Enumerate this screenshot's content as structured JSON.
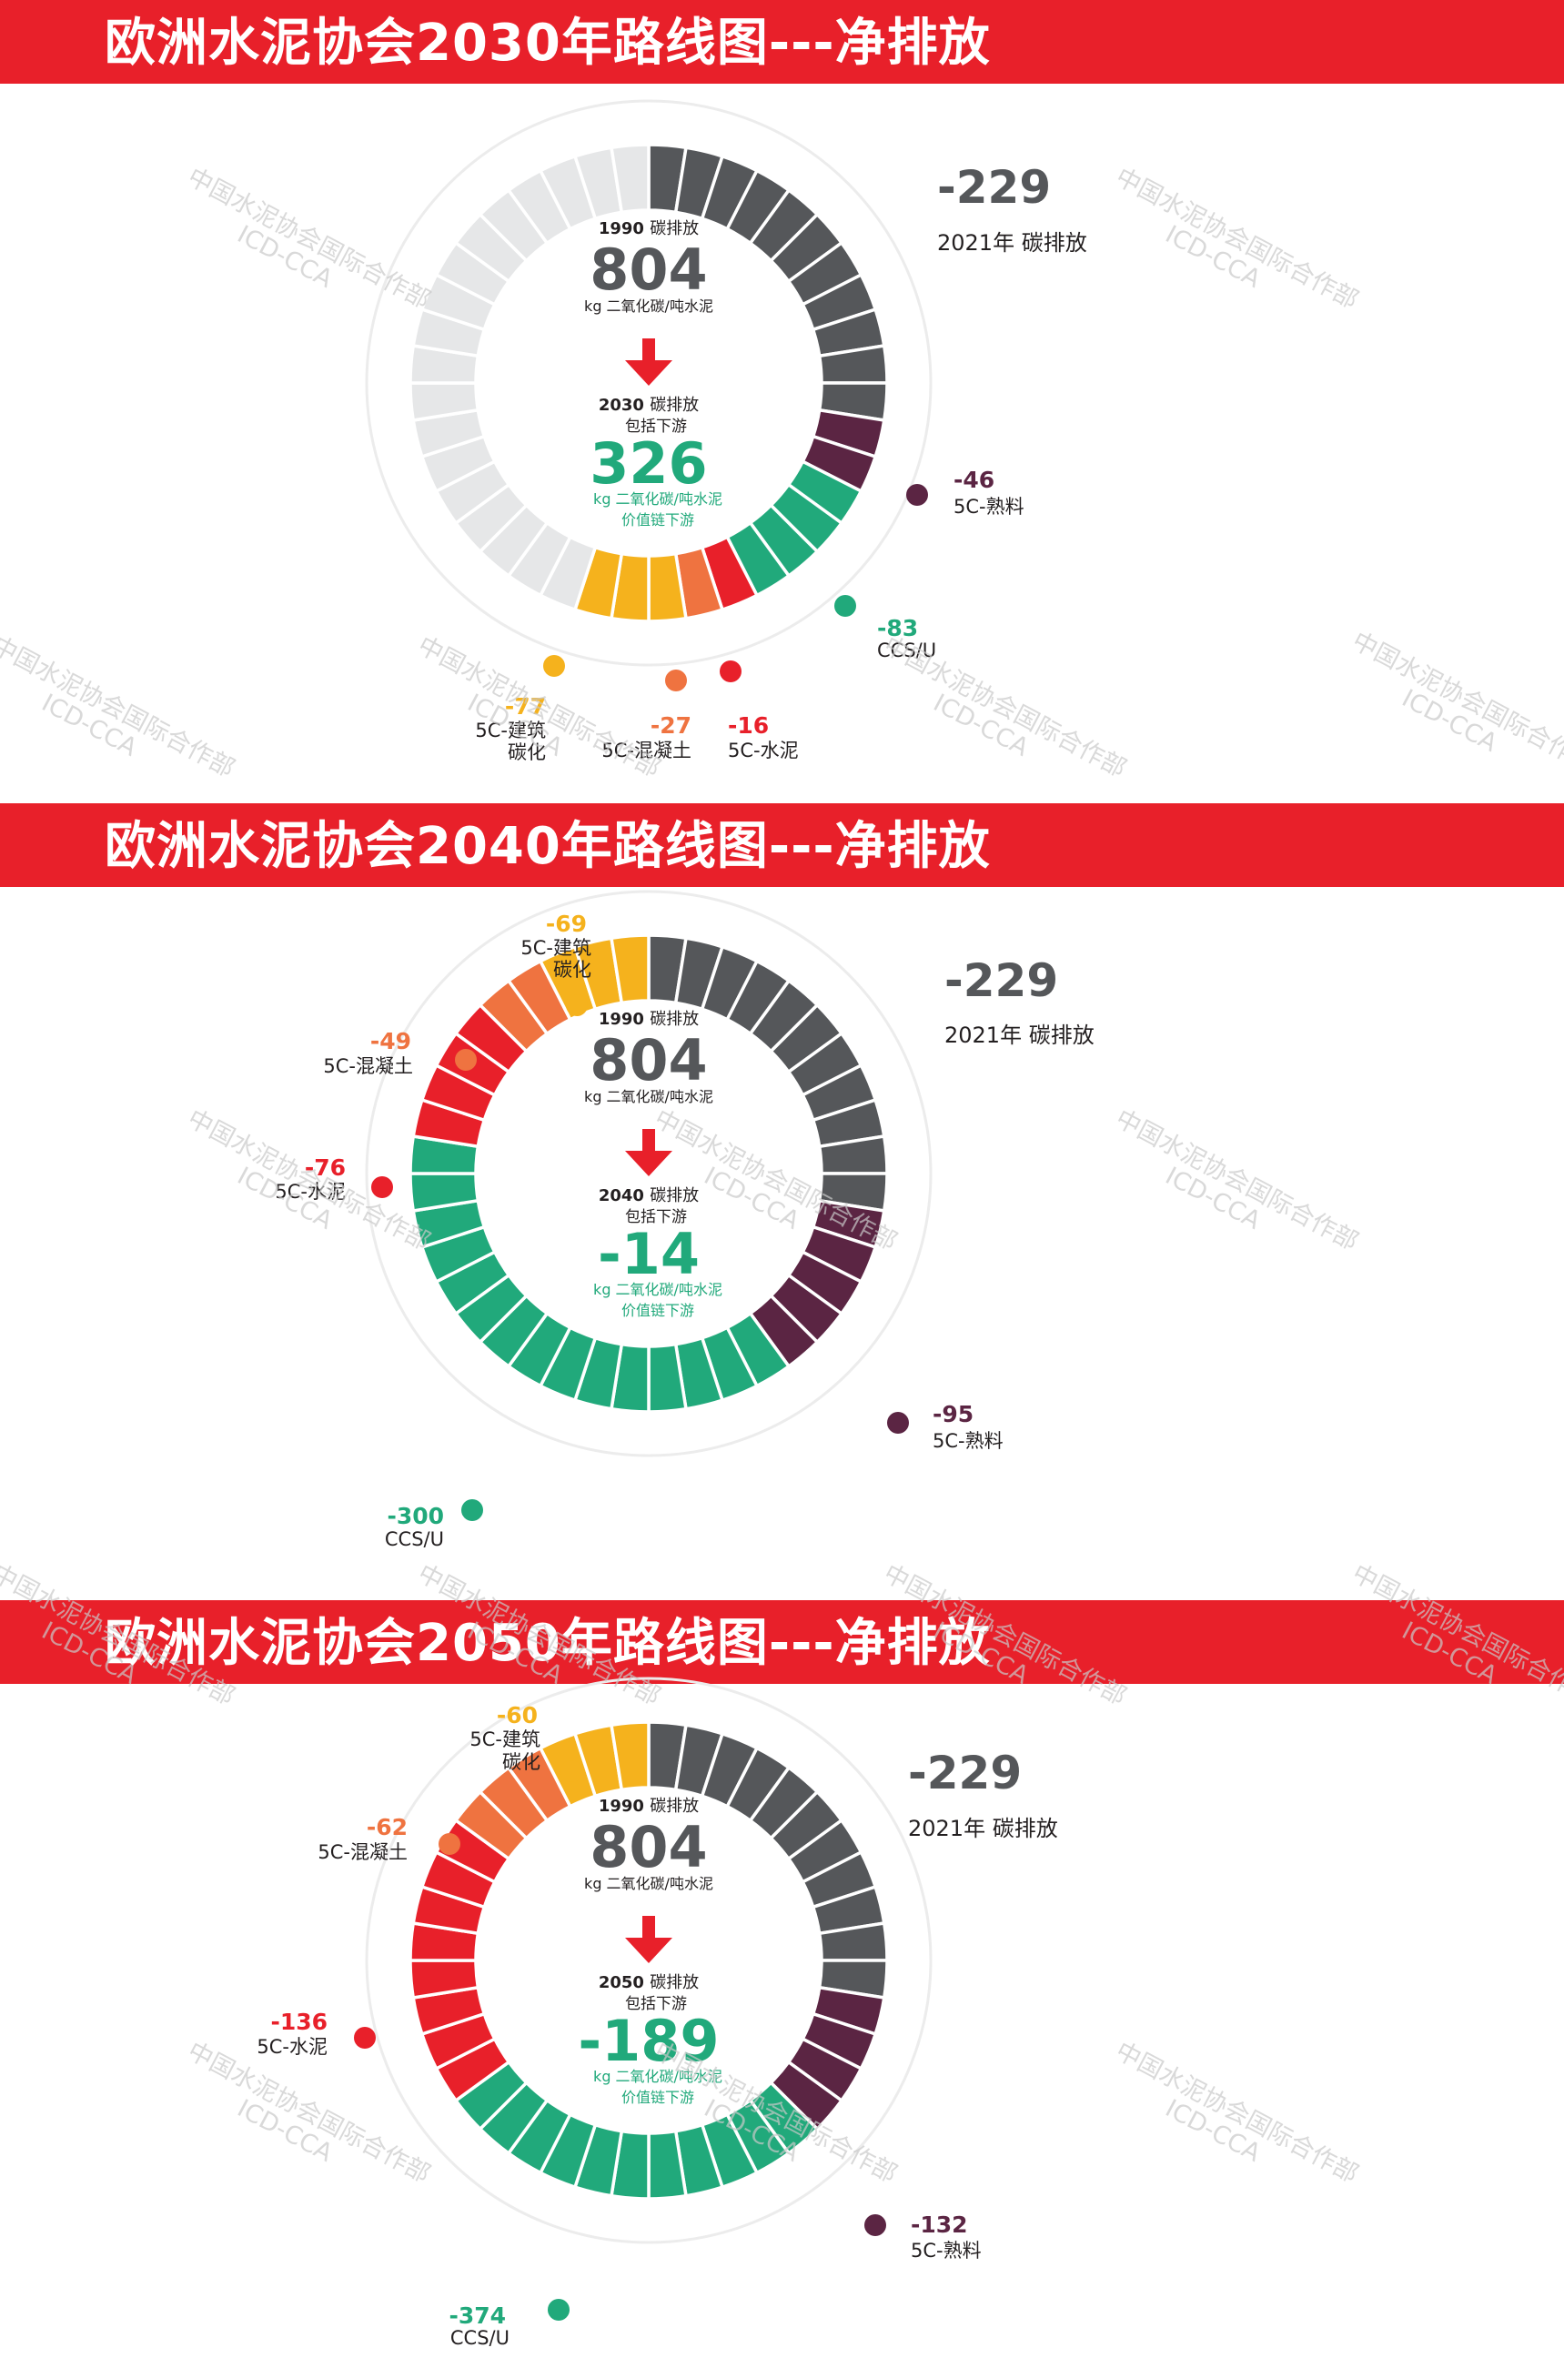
{
  "chart_data": [
    {
      "type": "donut",
      "title": "欧洲水泥协会2030年路线图---净排放",
      "total_segments": 40,
      "baseline": {
        "year_label": "1990",
        "label_suffix": "碳排放",
        "value": "804",
        "unit": "kg 二氧化碳/吨水泥"
      },
      "target": {
        "year_label": "2030",
        "label_suffix": "碳排放",
        "line2": "包括下游",
        "value": "326",
        "unit": "kg 二氧化碳/吨水泥",
        "unit2": "价值链下游"
      },
      "reference": {
        "value": "-229",
        "label": "2021年 碳排放"
      },
      "categories": [
        {
          "key": "2021",
          "value": -229,
          "segments": 11,
          "color": "#55575a",
          "label": "2021年 碳排放"
        },
        {
          "key": "clinker",
          "value": -46,
          "segments": 2,
          "color": "#5b2543",
          "label": "5C-熟料"
        },
        {
          "key": "ccsu",
          "value": -83,
          "segments": 4,
          "color": "#21a97b",
          "label": "CCS/U"
        },
        {
          "key": "cement",
          "value": -16,
          "segments": 1,
          "color": "#e8202a",
          "label": "5C-水泥"
        },
        {
          "key": "concrete",
          "value": -27,
          "segments": 1,
          "color": "#ef7340",
          "label": "5C-混凝土"
        },
        {
          "key": "construction",
          "value": -77,
          "segments": 3,
          "color": "#f5b21d",
          "label": "5C-建筑碳化"
        },
        {
          "key": "remaining",
          "value": 326,
          "segments": 18,
          "color": "#e6e7e8",
          "label": ""
        }
      ]
    },
    {
      "type": "donut",
      "title": "欧洲水泥协会2040年路线图---净排放",
      "total_segments": 40,
      "baseline": {
        "year_label": "1990",
        "label_suffix": "碳排放",
        "value": "804",
        "unit": "kg 二氧化碳/吨水泥"
      },
      "target": {
        "year_label": "2040",
        "label_suffix": "碳排放",
        "line2": "包括下游",
        "value": "-14",
        "unit": "kg 二氧化碳/吨水泥",
        "unit2": "价值链下游"
      },
      "reference": {
        "value": "-229",
        "label": "2021年 碳排放"
      },
      "categories": [
        {
          "key": "2021",
          "value": -229,
          "segments": 11,
          "color": "#55575a",
          "label": "2021年 碳排放"
        },
        {
          "key": "clinker",
          "value": -95,
          "segments": 5,
          "color": "#5b2543",
          "label": "5C-熟料"
        },
        {
          "key": "ccsu",
          "value": -300,
          "segments": 15,
          "color": "#21a97b",
          "label": "CCS/U"
        },
        {
          "key": "cement",
          "value": -76,
          "segments": 4,
          "color": "#e8202a",
          "label": "5C-水泥"
        },
        {
          "key": "concrete",
          "value": -49,
          "segments": 2,
          "color": "#ef7340",
          "label": "5C-混凝土"
        },
        {
          "key": "construction",
          "value": -69,
          "segments": 3,
          "color": "#f5b21d",
          "label": "5C-建筑碳化"
        }
      ]
    },
    {
      "type": "donut",
      "title": "欧洲水泥协会2050年路线图---净排放",
      "total_segments": 40,
      "baseline": {
        "year_label": "1990",
        "label_suffix": "碳排放",
        "value": "804",
        "unit": "kg 二氧化碳/吨水泥"
      },
      "target": {
        "year_label": "2050",
        "label_suffix": "碳排放",
        "line2": "包括下游",
        "value": "-189",
        "unit": "kg 二氧化碳/吨水泥",
        "unit2": "价值链下游"
      },
      "reference": {
        "value": "-229",
        "label": "2021年 碳排放"
      },
      "categories": [
        {
          "key": "2021",
          "value": -229,
          "segments": 11,
          "color": "#55575a",
          "label": "2021年 碳排放"
        },
        {
          "key": "clinker",
          "value": -132,
          "segments": 4,
          "color": "#5b2543",
          "label": "5C-熟料"
        },
        {
          "key": "ccsu",
          "value": -374,
          "segments": 11,
          "color": "#21a97b",
          "label": "CCS/U"
        },
        {
          "key": "cement",
          "value": -136,
          "segments": 8,
          "color": "#e8202a",
          "label": "5C-水泥"
        },
        {
          "key": "concrete",
          "value": -62,
          "segments": 3,
          "color": "#ef7340",
          "label": "5C-混凝土"
        },
        {
          "key": "construction",
          "value": -60,
          "segments": 3,
          "color": "#f5b21d",
          "label": "5C-建筑碳化"
        }
      ]
    }
  ],
  "watermark": {
    "cn": "中国水泥协会国际合作部",
    "en": "ICD-CCA"
  }
}
